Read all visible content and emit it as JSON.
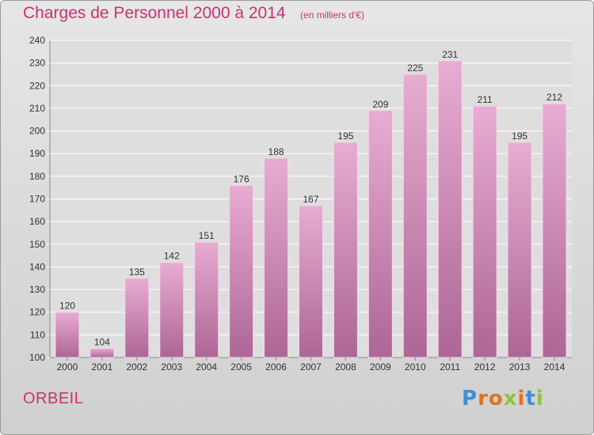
{
  "header": {
    "title": "Charges de Personnel 2000 à 2014",
    "subtitle": "(en milliers d'€)"
  },
  "footer": {
    "city": "ORBEIL",
    "brand": "Proxiti"
  },
  "colors": {
    "title": "#c8336e",
    "bar_top": "#e6a9d0",
    "bar_bottom": "#b06a99",
    "grid": "#ffffff"
  },
  "chart_data": {
    "type": "bar",
    "title": "Charges de Personnel 2000 à 2014",
    "subtitle": "(en milliers d'€)",
    "categories": [
      "2000",
      "2001",
      "2002",
      "2003",
      "2004",
      "2005",
      "2006",
      "2007",
      "2008",
      "2009",
      "2010",
      "2011",
      "2012",
      "2013",
      "2014"
    ],
    "values": [
      120,
      104,
      135,
      142,
      151,
      176,
      188,
      167,
      195,
      209,
      225,
      231,
      211,
      195,
      212
    ],
    "ylim": [
      100,
      240
    ],
    "yticks": [
      100,
      110,
      120,
      130,
      140,
      150,
      160,
      170,
      180,
      190,
      200,
      210,
      220,
      230,
      240
    ],
    "grid": true
  }
}
